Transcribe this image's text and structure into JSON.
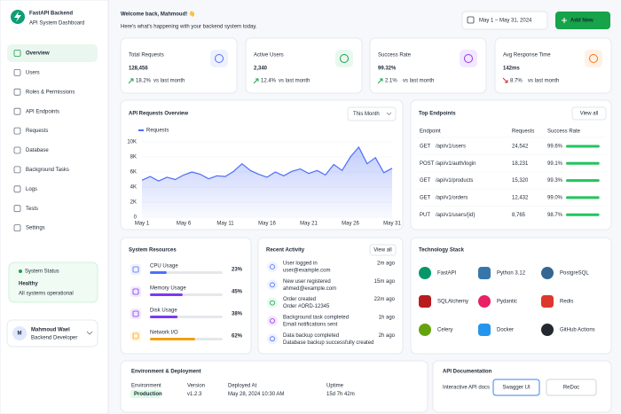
{
  "sidebar": {
    "brand": "FastAPI Backend",
    "tagline": "API System Dashboard",
    "nav": [
      "Overview",
      "Users",
      "Roles & Permissions",
      "API Endpoints",
      "Requests",
      "Database",
      "Background Tasks",
      "Logs",
      "Tests",
      "Settings"
    ],
    "status": {
      "label": "System Status",
      "state": "Healthy",
      "message": "All systems operational"
    },
    "user": {
      "initial": "M",
      "name": "Mahmoud Wael",
      "role": "Backend Developer"
    }
  },
  "header": {
    "title": "Welcome back, Mahmoud! 👋",
    "subtitle": "Here's what's happening with your backend system today.",
    "date_range": "May 1 – May 31, 2024",
    "add_button": "Add New"
  },
  "kpis": [
    {
      "label": "Total Requests",
      "value": "128,456",
      "change": "18.2%",
      "note": "vs last month",
      "trend": "up"
    },
    {
      "label": "Active Users",
      "value": "2,340",
      "change": "12.4%",
      "note": "vs last month",
      "trend": "up"
    },
    {
      "label": "Success Rate",
      "value": "99.32%",
      "change": "2.1%",
      "note": "vs last month",
      "trend": "up"
    },
    {
      "label": "Avg Response Time",
      "value": "142ms",
      "change": "8.7%",
      "note": "vs last month",
      "trend": "down"
    }
  ],
  "chart_data": {
    "type": "line",
    "title": "API Requests Overview",
    "period": "This Month",
    "categories": [
      "May 1",
      null,
      null,
      null,
      null,
      "May 6",
      null,
      null,
      null,
      null,
      "May 11",
      null,
      null,
      null,
      null,
      "May 16",
      null,
      null,
      null,
      null,
      "May 21",
      null,
      null,
      null,
      null,
      "May 26",
      null,
      null,
      null,
      null,
      "May 31"
    ],
    "series": [
      {
        "name": "Requests",
        "color": "#4f6ef7",
        "values": [
          4900,
          5400,
          4800,
          5300,
          5000,
          5600,
          6000,
          5700,
          5100,
          5500,
          5400,
          6100,
          7100,
          6200,
          5700,
          5300,
          6000,
          5500,
          6100,
          6400,
          5800,
          6200,
          5600,
          7000,
          6200,
          8000,
          9300,
          7100,
          7900,
          5900,
          6500
        ]
      }
    ],
    "ylim": [
      0,
      10000
    ],
    "yticks": [
      0,
      {
        "value": 2000,
        "label": "2K"
      },
      {
        "value": 4000,
        "label": "4K"
      },
      {
        "value": 6000,
        "label": "6K"
      },
      {
        "value": 8000,
        "label": "8K"
      },
      {
        "value": 10000,
        "label": "10K"
      }
    ],
    "grid": true
  },
  "endpoints": {
    "title": "Top Endpoints",
    "action": "View all",
    "columns": [
      "Endpoint",
      "Requests",
      "Success Rate"
    ],
    "rows": [
      {
        "method": "GET",
        "path": "/api/v1/users",
        "requests": "24,542",
        "success_rate": {
          "value": 99.6,
          "label": "99.6%"
        }
      },
      {
        "method": "POST",
        "path": "/api/v1/auth/login",
        "requests": "18,231",
        "success_rate": {
          "value": 99.1,
          "label": "99.1%"
        }
      },
      {
        "method": "GET",
        "path": "/api/v1/products",
        "requests": "15,320",
        "success_rate": {
          "value": 99.3,
          "label": "99.3%"
        }
      },
      {
        "method": "GET",
        "path": "/api/v1/orders",
        "requests": "12,432",
        "success_rate": {
          "value": 99.0,
          "label": "99.0%"
        }
      },
      {
        "method": "PUT",
        "path": "/api/v1/users/{id}",
        "requests": "8,765",
        "success_rate": {
          "value": 98.7,
          "label": "98.7%"
        }
      }
    ]
  },
  "resources": {
    "title": "System Resources",
    "items": [
      {
        "name": "CPU Usage",
        "usage": {
          "value": 23,
          "label": "23%"
        }
      },
      {
        "name": "Memory Usage",
        "usage": {
          "value": 45,
          "label": "45%"
        }
      },
      {
        "name": "Disk Usage",
        "usage": {
          "value": 38,
          "label": "38%"
        }
      },
      {
        "name": "Network I/O",
        "usage": {
          "value": 62,
          "label": "62%"
        }
      }
    ]
  },
  "activity": {
    "title": "Recent Activity",
    "action": "View all",
    "items": [
      {
        "title": "User logged in",
        "detail": "user@example.com",
        "time": "2m ago"
      },
      {
        "title": "New user registered",
        "detail": "ahmed@example.com",
        "time": "15m ago"
      },
      {
        "title": "Order created",
        "detail": "Order #ORD-12345",
        "time": "22m ago"
      },
      {
        "title": "Background task completed",
        "detail": "Email notifications sent",
        "time": "1h ago"
      },
      {
        "title": "Data backup completed",
        "detail": "Database backup successfully created",
        "time": "2h ago"
      }
    ]
  },
  "tech_stack": {
    "title": "Technology Stack",
    "items": [
      "FastAPI",
      "Python 3.12",
      "PostgreSQL",
      "SQLAlchemy",
      "Pydantic",
      "Redis",
      "Celery",
      "Docker",
      "GitHub Actions"
    ]
  },
  "environment": {
    "title": "Environment & Deployment",
    "fields": [
      {
        "label": "Environment",
        "value": "Production"
      },
      {
        "label": "Version",
        "value": "v1.2.3"
      },
      {
        "label": "Deployed At",
        "value": "May 28, 2024 10:30 AM"
      },
      {
        "label": "Uptime",
        "value": "15d 7h 42m"
      }
    ]
  },
  "api_docs": {
    "title": "API Documentation",
    "description": "Interactive API docs",
    "buttons": [
      "Swagger UI",
      "ReDoc"
    ]
  }
}
